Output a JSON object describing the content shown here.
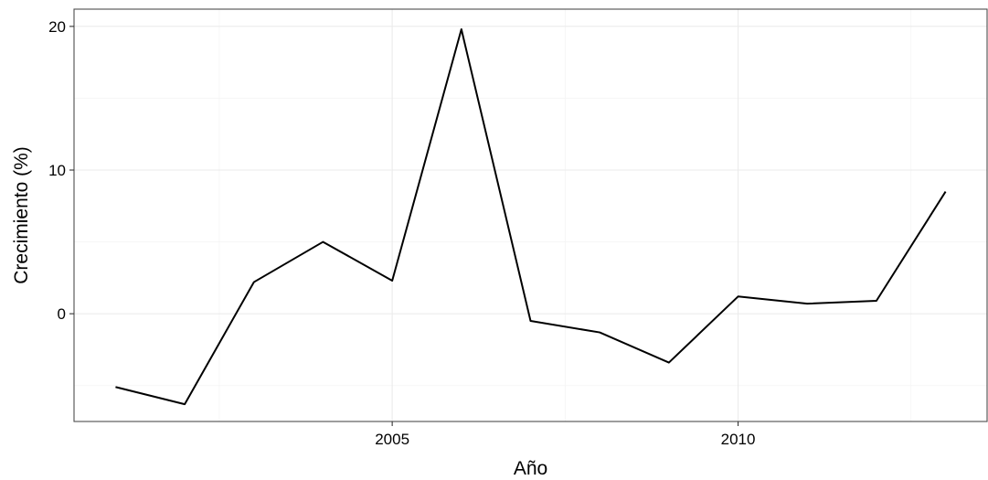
{
  "chart_data": {
    "type": "line",
    "title": "",
    "xlabel": "Año",
    "ylabel": "Crecimiento (%)",
    "x": [
      2001,
      2002,
      2003,
      2004,
      2005,
      2006,
      2007,
      2008,
      2009,
      2010,
      2011,
      2012,
      2013
    ],
    "series": [
      {
        "values": [
          -5.1,
          -6.3,
          2.2,
          5.0,
          2.3,
          19.8,
          -0.5,
          -1.3,
          -3.4,
          1.2,
          0.7,
          0.9,
          8.5
        ],
        "color": "#000000"
      }
    ],
    "xlim": [
      2000.4,
      2013.6
    ],
    "ylim": [
      -7.5,
      21.2
    ],
    "x_ticks": [
      2005,
      2010
    ],
    "x_minor_ticks": [
      2002.5,
      2007.5,
      2012.5
    ],
    "y_ticks": [
      0,
      10,
      20
    ],
    "y_minor_ticks": [
      -5,
      5,
      15
    ],
    "grid": true,
    "legend": "none"
  }
}
